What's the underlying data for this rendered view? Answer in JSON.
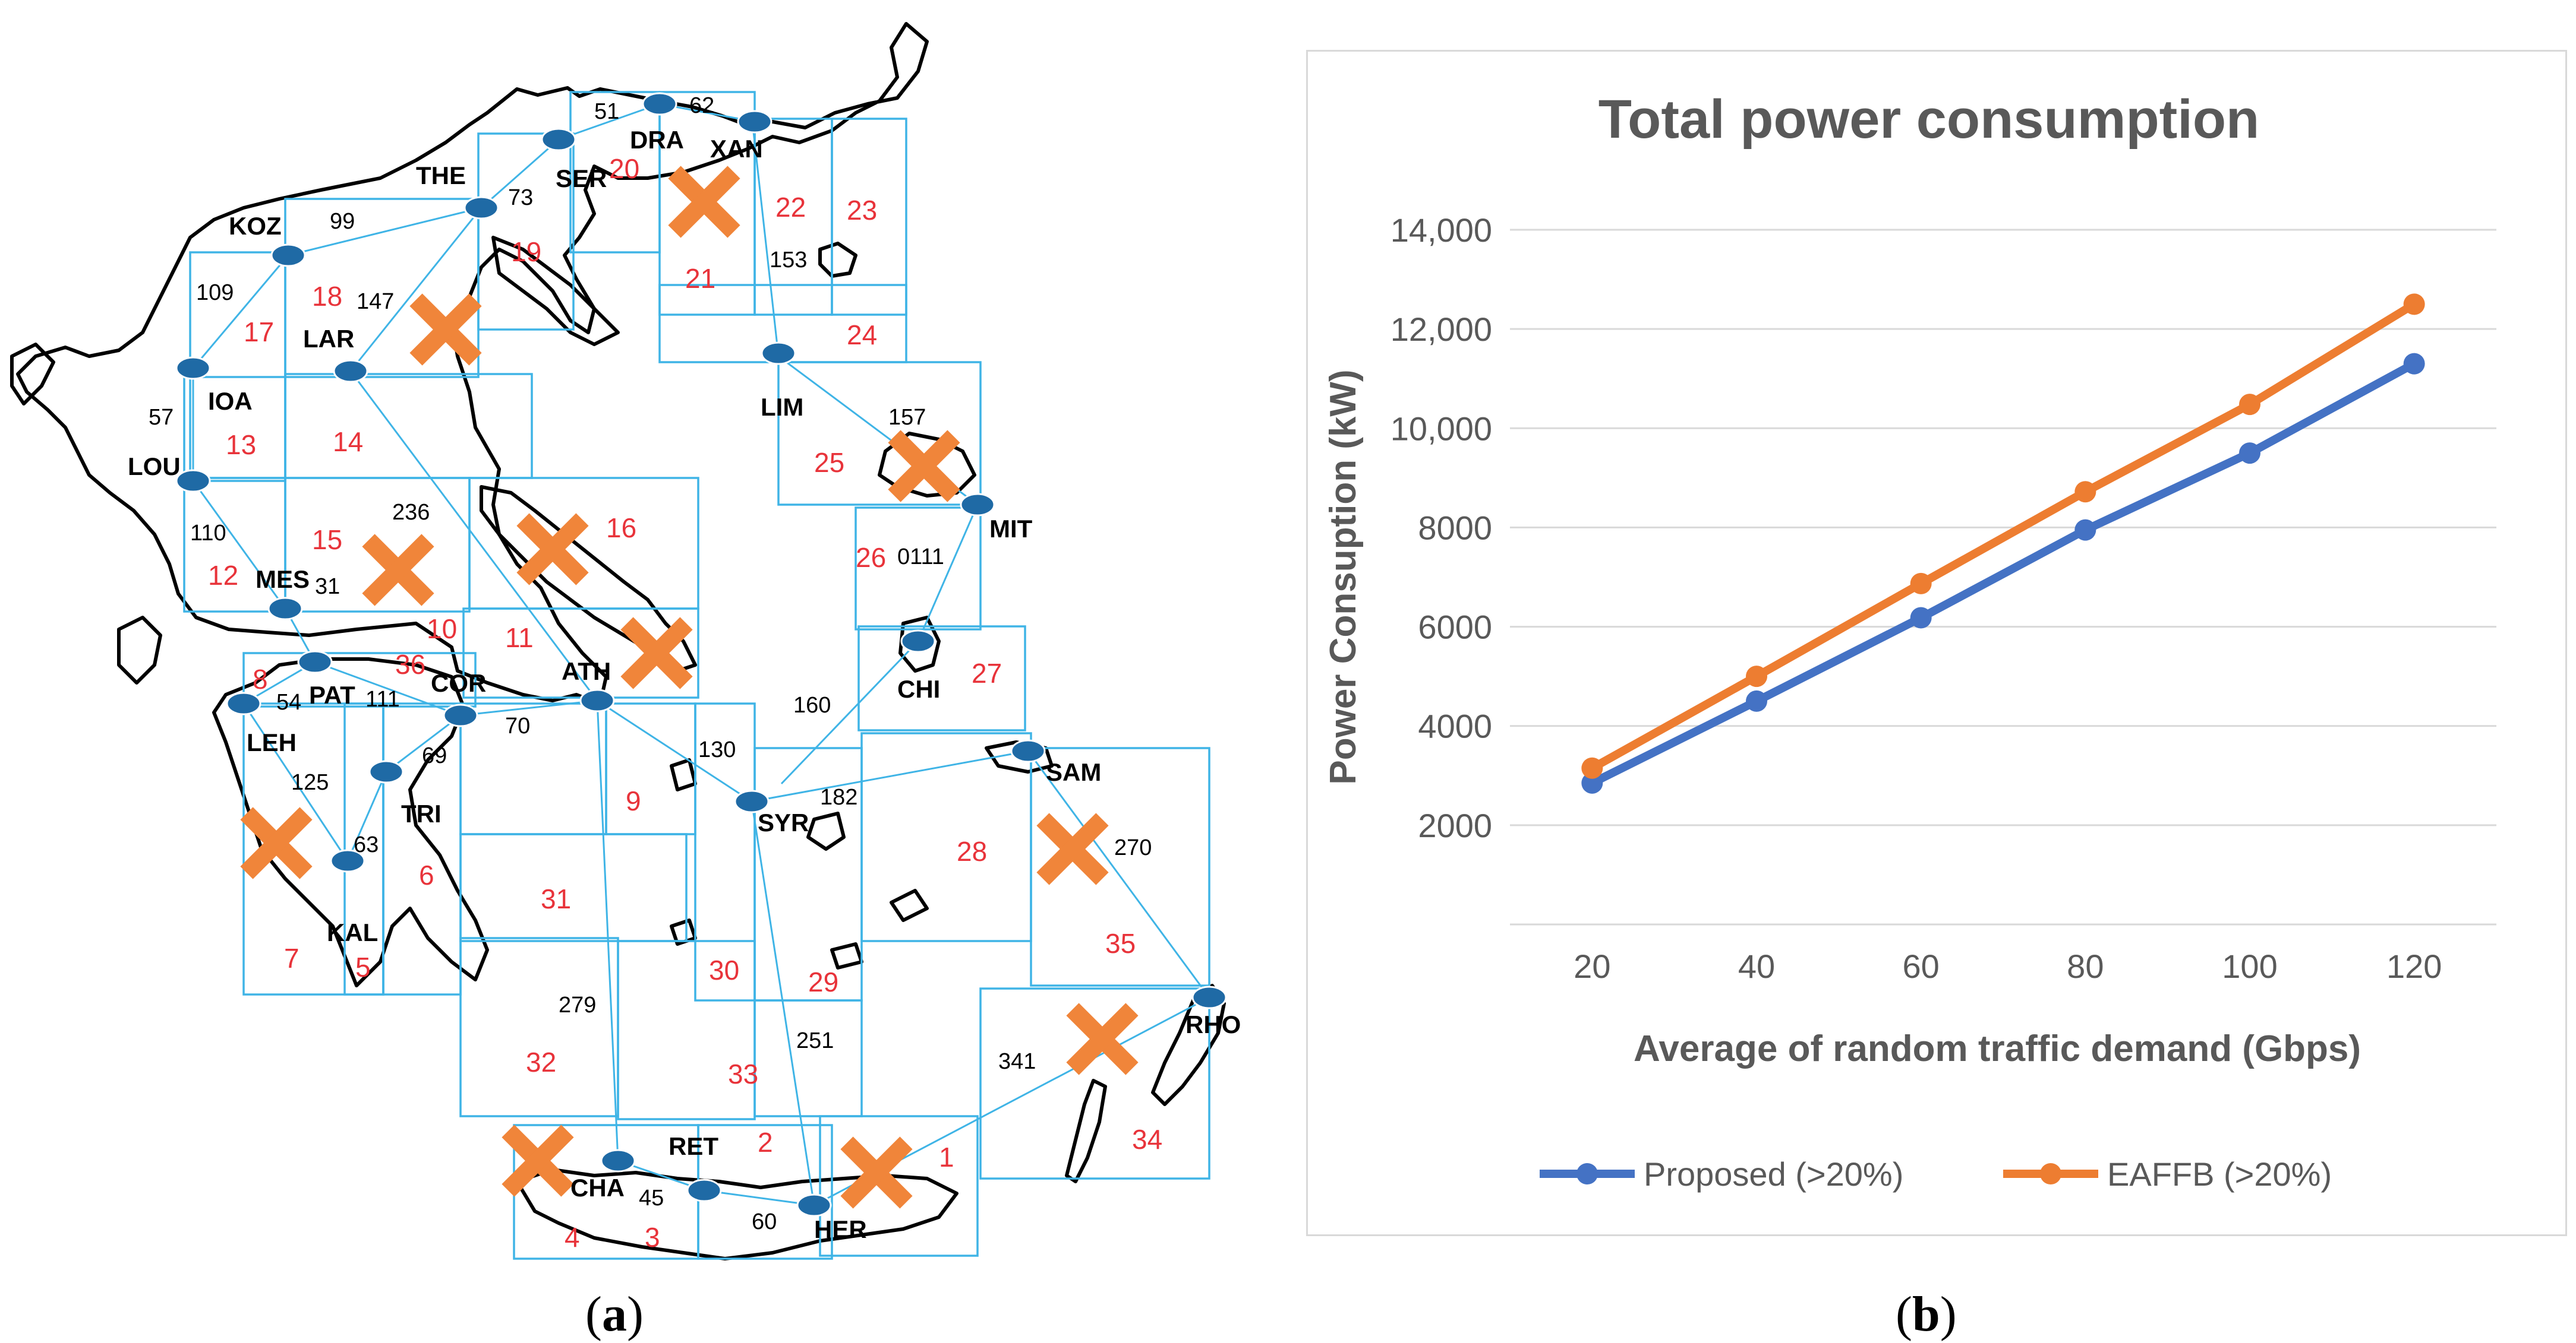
{
  "map": {
    "colors": {
      "coast": "#000000",
      "cell": "#3fb4e6",
      "link": "#3fb4e6",
      "node": "#1f6aa5",
      "region": "#e8333a",
      "cross": "#f0853a"
    },
    "regions": [
      "1",
      "2",
      "3",
      "4",
      "5",
      "6",
      "7",
      "8",
      "9",
      "10",
      "11",
      "12",
      "13",
      "14",
      "15",
      "16",
      "17",
      "18",
      "19",
      "20",
      "21",
      "22",
      "23",
      "24",
      "25",
      "26",
      "27",
      "28",
      "29",
      "30",
      "31",
      "32",
      "33",
      "34",
      "35",
      "36"
    ],
    "nodes": [
      "DRA",
      "XAN",
      "SER",
      "THE",
      "KOZ",
      "LAR",
      "IOA",
      "LOU",
      "MES",
      "PAT",
      "LEH",
      "COR",
      "ATH",
      "TRI",
      "KAL",
      "LIM",
      "MIT",
      "CHI",
      "SYR",
      "SAM",
      "RHO",
      "CHA",
      "RET",
      "HER"
    ],
    "link_labels": [
      "51",
      "62",
      "73",
      "99",
      "109",
      "147",
      "57",
      "110",
      "236",
      "31",
      "54",
      "111",
      "125",
      "63",
      "69",
      "70",
      "130",
      "153",
      "157",
      "0111",
      "160",
      "182",
      "270",
      "279",
      "251",
      "341",
      "45",
      "60"
    ]
  },
  "chart_data": {
    "type": "line",
    "title": "Total power consumption",
    "xlabel": "Average of random traffic demand (Gbps)",
    "ylabel": "Power Consuption (kW)",
    "x": [
      20,
      40,
      60,
      80,
      100,
      120
    ],
    "xticks": [
      "20",
      "40",
      "60",
      "80",
      "100",
      "120"
    ],
    "ylim": [
      0,
      14000
    ],
    "yticks": [
      2000,
      4000,
      6000,
      8000,
      10000,
      12000,
      14000
    ],
    "ytick_labels": [
      "2000",
      "4000",
      "6000",
      "8000",
      "10,000",
      "12,000",
      "14,000"
    ],
    "grid": true,
    "legend_position": "bottom",
    "series": [
      {
        "name": "Proposed (>20%)",
        "color": "#4472c4",
        "values": [
          2850,
          4500,
          6180,
          7950,
          9500,
          11300
        ]
      },
      {
        "name": "EAFFB (>20%)",
        "color": "#ed7d31",
        "values": [
          3150,
          5000,
          6870,
          8720,
          10480,
          12500
        ]
      }
    ]
  },
  "captions": {
    "a": "a",
    "b": "b"
  }
}
